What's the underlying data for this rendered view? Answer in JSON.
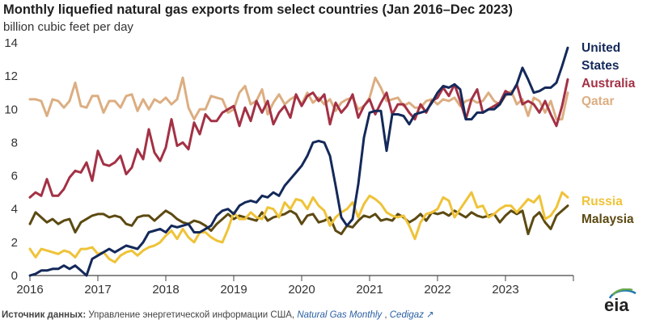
{
  "title": "Monthly liquefied natural gas exports from select countries (Jan 2016–Dec 2023)",
  "subtitle": "billion cubic feet per day",
  "source": {
    "label": "Источник данных:",
    "text": " Управление энергетической информации США, ",
    "publication": "Natural Gas Monthly",
    "sep": " , ",
    "extra": "Cedigaz",
    "ext_icon": "↗"
  },
  "logo_text": "eia",
  "colors": {
    "united_states": "#14295a",
    "australia": "#a33145",
    "qatar": "#dcae82",
    "russia": "#efc338",
    "malaysia": "#5c4a12",
    "axis": "#444444"
  },
  "chart_data": {
    "type": "line",
    "title": "Monthly liquefied natural gas exports from select countries (Jan 2016–Dec 2023)",
    "ylabel": "billion cubic feet per day",
    "xlabel": "",
    "ylim": [
      0,
      14
    ],
    "yticks": [
      0,
      2,
      4,
      6,
      8,
      10,
      12,
      14
    ],
    "xlim": [
      2016,
      2024
    ],
    "xticks": [
      "2016",
      "2017",
      "2018",
      "2019",
      "2020",
      "2021",
      "2022",
      "2023"
    ],
    "grid": false,
    "legend": "right (labels at line ends)",
    "x_start": "2016-01",
    "frequency": "monthly",
    "series": [
      {
        "name": "United States",
        "label_lines": [
          "United",
          "States"
        ],
        "color": "#14295a",
        "values": [
          0.0,
          0.1,
          0.3,
          0.3,
          0.4,
          0.4,
          0.6,
          0.4,
          0.6,
          0.3,
          0.0,
          1.0,
          1.2,
          1.4,
          1.6,
          1.4,
          1.6,
          1.8,
          1.7,
          1.6,
          2.0,
          2.6,
          2.7,
          2.8,
          2.6,
          3.0,
          2.9,
          3.0,
          3.1,
          2.6,
          2.6,
          2.8,
          3.0,
          3.6,
          3.9,
          4.0,
          3.7,
          4.2,
          4.4,
          4.5,
          4.4,
          4.8,
          4.7,
          5.0,
          4.8,
          5.4,
          5.8,
          6.2,
          6.6,
          7.2,
          8.0,
          8.1,
          8.0,
          7.2,
          5.4,
          3.5,
          3.0,
          3.4,
          5.5,
          8.3,
          9.8,
          9.9,
          9.9,
          7.5,
          9.7,
          9.7,
          9.6,
          9.1,
          9.7,
          9.8,
          9.9,
          10.4,
          11.0,
          11.4,
          11.3,
          11.5,
          11.2,
          9.4,
          9.4,
          9.8,
          9.8,
          10.0,
          10.0,
          10.3,
          10.9,
          10.9,
          11.5,
          12.5,
          11.8,
          11.0,
          11.1,
          11.3,
          11.3,
          11.6,
          12.6,
          13.7
        ]
      },
      {
        "name": "Australia",
        "label_lines": [
          "Australia"
        ],
        "color": "#a33145",
        "values": [
          4.7,
          5.0,
          4.8,
          5.8,
          4.8,
          4.8,
          5.2,
          5.9,
          6.3,
          6.2,
          6.8,
          5.7,
          7.5,
          6.7,
          6.6,
          6.8,
          7.2,
          6.1,
          6.5,
          7.6,
          7.0,
          8.8,
          7.4,
          6.9,
          7.7,
          9.4,
          7.8,
          8.0,
          7.6,
          9.2,
          8.5,
          9.7,
          9.3,
          9.3,
          9.8,
          10.0,
          10.2,
          9.0,
          10.1,
          9.3,
          10.5,
          9.8,
          10.5,
          9.1,
          9.8,
          10.2,
          9.5,
          10.9,
          10.2,
          10.8,
          11.0,
          10.5,
          10.9,
          9.1,
          10.4,
          9.8,
          10.2,
          10.9,
          9.5,
          10.2,
          10.6,
          9.7,
          10.4,
          11.0,
          9.7,
          10.3,
          10.3,
          9.8,
          9.4,
          10.3,
          9.8,
          10.5,
          10.7,
          11.3,
          10.8,
          11.5,
          10.5,
          9.4,
          10.6,
          11.2,
          9.8,
          10.0,
          10.2,
          10.4,
          11.1,
          10.9,
          11.5,
          10.3,
          10.5,
          10.3,
          9.8,
          10.5,
          9.7,
          9.0,
          10.2,
          11.8
        ]
      },
      {
        "name": "Qatar",
        "label_lines": [
          "Qatar"
        ],
        "color": "#dcae82",
        "values": [
          10.6,
          10.6,
          10.5,
          9.6,
          10.6,
          10.5,
          10.1,
          10.5,
          11.6,
          10.2,
          10.1,
          10.8,
          10.8,
          9.8,
          10.5,
          10.5,
          10.1,
          10.8,
          10.9,
          9.9,
          10.6,
          10.0,
          10.6,
          10.4,
          10.7,
          10.3,
          10.6,
          11.9,
          10.1,
          9.4,
          10.0,
          10.0,
          10.8,
          10.7,
          10.6,
          9.8,
          10.0,
          11.0,
          11.4,
          10.3,
          10.5,
          11.2,
          9.7,
          10.4,
          10.9,
          10.3,
          10.6,
          10.8,
          10.3,
          11.0,
          10.4,
          10.7,
          10.3,
          10.6,
          9.9,
          10.4,
          10.6,
          10.7,
          10.0,
          10.2,
          10.7,
          11.9,
          11.3,
          10.5,
          10.6,
          10.7,
          10.2,
          10.4,
          10.1,
          10.1,
          10.5,
          10.6,
          10.3,
          10.6,
          10.5,
          10.7,
          10.2,
          10.5,
          10.6,
          10.4,
          10.5,
          11.0,
          10.5,
          10.3,
          10.8,
          11.1,
          10.3,
          10.6,
          9.6,
          10.7,
          10.5,
          9.8,
          10.5,
          9.4,
          9.4,
          11.0
        ]
      },
      {
        "name": "Russia",
        "label_lines": [
          "Russia"
        ],
        "color": "#efc338",
        "values": [
          1.6,
          1.1,
          1.6,
          1.5,
          1.4,
          1.3,
          1.5,
          1.4,
          1.1,
          1.6,
          1.6,
          1.7,
          1.3,
          1.4,
          1.0,
          0.8,
          1.2,
          1.4,
          1.5,
          1.2,
          1.5,
          1.7,
          1.8,
          2.0,
          2.4,
          2.7,
          2.2,
          2.8,
          2.3,
          2.0,
          2.6,
          2.6,
          2.3,
          2.1,
          2.0,
          2.8,
          3.8,
          3.4,
          3.4,
          3.8,
          3.5,
          3.4,
          4.1,
          4.0,
          3.5,
          4.4,
          4.0,
          4.6,
          4.5,
          4.0,
          4.7,
          4.2,
          3.9,
          3.0,
          3.5,
          3.8,
          4.0,
          4.4,
          3.5,
          4.3,
          4.8,
          4.6,
          4.3,
          3.8,
          3.6,
          3.5,
          3.6,
          3.0,
          2.2,
          3.2,
          3.7,
          3.8,
          4.0,
          4.7,
          4.5,
          3.5,
          4.0,
          4.5,
          5.0,
          4.1,
          4.2,
          3.5,
          3.7,
          4.0,
          4.2,
          4.2,
          3.8,
          4.2,
          4.6,
          4.4,
          4.8,
          3.4,
          3.6,
          4.1,
          5.0,
          4.7
        ]
      },
      {
        "name": "Malaysia",
        "label_lines": [
          "Malaysia"
        ],
        "color": "#5c4a12",
        "values": [
          3.1,
          3.8,
          3.5,
          3.2,
          3.4,
          3.1,
          3.3,
          3.4,
          2.6,
          3.2,
          3.4,
          3.6,
          3.7,
          3.7,
          3.5,
          3.6,
          3.5,
          3.1,
          3.0,
          3.5,
          3.6,
          3.6,
          3.3,
          3.6,
          3.9,
          3.7,
          3.4,
          3.2,
          3.1,
          3.3,
          3.2,
          3.0,
          2.7,
          3.1,
          3.4,
          3.7,
          3.4,
          3.6,
          3.5,
          3.4,
          3.3,
          3.8,
          3.3,
          3.5,
          3.6,
          3.7,
          3.9,
          3.7,
          3.1,
          3.6,
          3.7,
          3.2,
          3.3,
          3.5,
          2.7,
          2.5,
          3.0,
          2.9,
          3.3,
          3.6,
          3.5,
          3.7,
          3.3,
          3.4,
          3.3,
          3.7,
          3.5,
          3.2,
          3.4,
          3.7,
          3.3,
          3.8,
          3.7,
          3.8,
          3.6,
          3.9,
          3.7,
          3.5,
          3.8,
          3.6,
          3.5,
          3.6,
          3.7,
          3.2,
          3.6,
          3.9,
          3.7,
          3.9,
          2.5,
          3.5,
          3.8,
          3.2,
          2.8,
          3.6,
          3.9,
          4.2
        ]
      }
    ]
  }
}
